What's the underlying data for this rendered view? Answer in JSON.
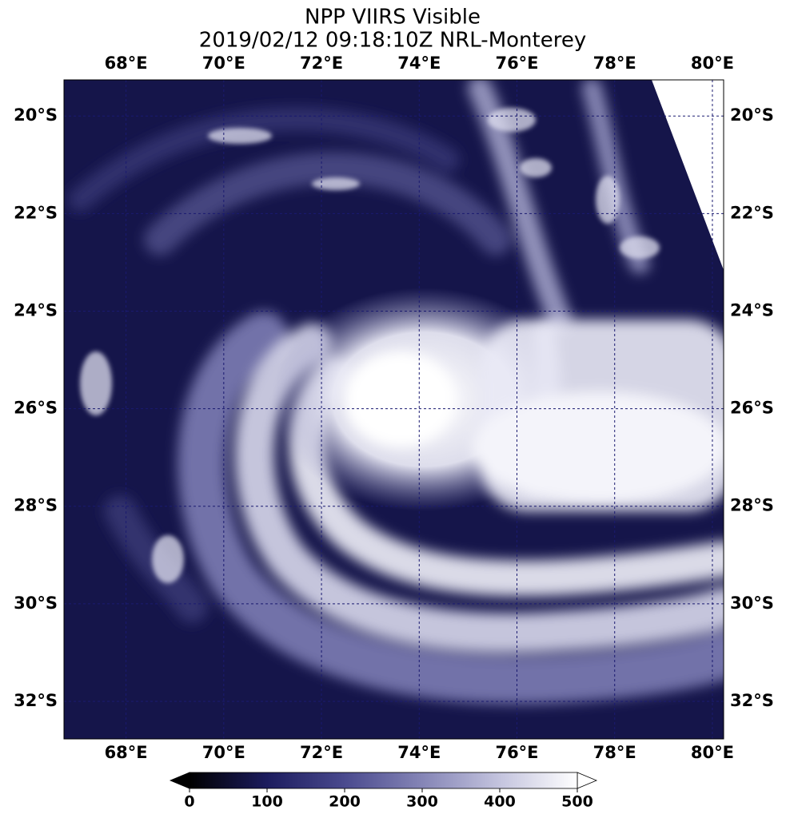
{
  "chart_data": {
    "type": "map",
    "title": "NPP VIIRS Visible",
    "subtitle": "2019/02/12 09:18:10Z NRL-Monterey",
    "xlim": [
      66.73,
      80.23
    ],
    "ylim": [
      -32.77,
      -19.26
    ],
    "xticks": [
      {
        "value": 68,
        "label": "68°E"
      },
      {
        "value": 70,
        "label": "70°E"
      },
      {
        "value": 72,
        "label": "72°E"
      },
      {
        "value": 74,
        "label": "74°E"
      },
      {
        "value": 76,
        "label": "76°E"
      },
      {
        "value": 78,
        "label": "78°E"
      },
      {
        "value": 80,
        "label": "80°E"
      }
    ],
    "yticks": [
      {
        "value": -20,
        "label": "20°S"
      },
      {
        "value": -22,
        "label": "22°S"
      },
      {
        "value": -24,
        "label": "24°S"
      },
      {
        "value": -26,
        "label": "26°S"
      },
      {
        "value": -28,
        "label": "28°S"
      },
      {
        "value": -30,
        "label": "30°S"
      },
      {
        "value": -32,
        "label": "32°S"
      }
    ],
    "grid": true,
    "colorbar": {
      "lim": [
        0,
        500
      ],
      "ticks": [
        0,
        100,
        200,
        300,
        400,
        500
      ],
      "colors": [
        "#000000",
        "#1c1c5e",
        "#4a4a8e",
        "#8585b6",
        "#c4c4de",
        "#ffffff"
      ]
    }
  }
}
